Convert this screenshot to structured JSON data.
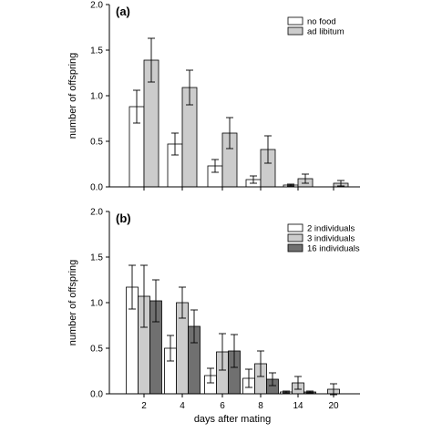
{
  "colors": {
    "white_bar": "#ffffff",
    "light_grey_bar": "#cccccc",
    "dark_grey_bar": "#707070",
    "axis": "#000000",
    "error_bar": "#000000"
  },
  "xlabel": "days after mating",
  "chart_data": [
    {
      "type": "bar",
      "panel_label": "(a)",
      "ylabel": "number of offspring",
      "ylim": [
        0,
        2.0
      ],
      "yticks": [
        "0.0",
        "0.5",
        "1.0",
        "1.5",
        "2.0"
      ],
      "categories": [
        "2",
        "4",
        "6",
        "8",
        "14",
        "20"
      ],
      "category_labels_visible": false,
      "legend_position": "top-right",
      "series": [
        {
          "name": "no food",
          "color": "#ffffff",
          "values": [
            0.88,
            0.47,
            0.23,
            0.08,
            0.02,
            0.0
          ],
          "errors": [
            0.18,
            0.12,
            0.07,
            0.04,
            0.01,
            0.0
          ]
        },
        {
          "name": "ad libitum",
          "color": "#cccccc",
          "values": [
            1.39,
            1.09,
            0.59,
            0.41,
            0.09,
            0.04
          ],
          "errors": [
            0.24,
            0.19,
            0.17,
            0.15,
            0.05,
            0.03
          ]
        }
      ]
    },
    {
      "type": "bar",
      "panel_label": "(b)",
      "ylabel": "number of offspring",
      "ylim": [
        0,
        2.0
      ],
      "yticks": [
        "0.0",
        "0.5",
        "1.0",
        "1.5",
        "2.0"
      ],
      "categories": [
        "2",
        "4",
        "6",
        "8",
        "14",
        "20"
      ],
      "category_labels_visible": true,
      "legend_position": "top-right",
      "series": [
        {
          "name": "2 individuals",
          "color": "#ffffff",
          "values": [
            1.17,
            0.5,
            0.2,
            0.17,
            0.02,
            0.0
          ],
          "errors": [
            0.24,
            0.14,
            0.08,
            0.1,
            0.01,
            0.0
          ]
        },
        {
          "name": "3 individuals",
          "color": "#cccccc",
          "values": [
            1.07,
            1.0,
            0.46,
            0.33,
            0.12,
            0.05
          ],
          "errors": [
            0.34,
            0.17,
            0.2,
            0.14,
            0.07,
            0.06
          ]
        },
        {
          "name": "16 individuals",
          "color": "#707070",
          "values": [
            1.02,
            0.74,
            0.47,
            0.16,
            0.02,
            0.0
          ],
          "errors": [
            0.23,
            0.18,
            0.18,
            0.07,
            0.01,
            0.0
          ]
        }
      ]
    }
  ]
}
